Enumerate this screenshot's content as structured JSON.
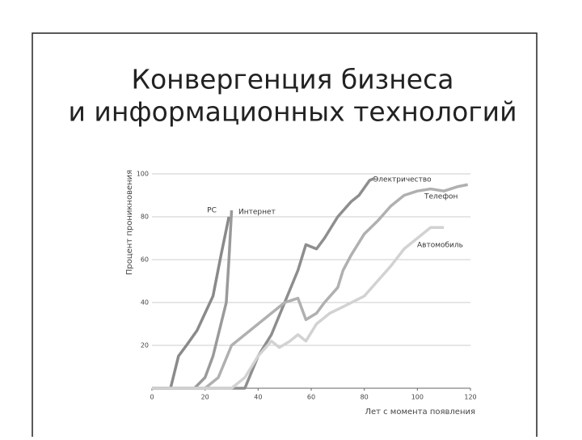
{
  "chart_data": {
    "type": "line",
    "title": [
      "Конвергенция бизнеса",
      "и информационных технологий"
    ],
    "y_label": "Процент проникновения",
    "x_label": "Лет с момента появления",
    "xlim": [
      0,
      120
    ],
    "ylim": [
      0,
      100
    ],
    "xticks": [
      0,
      20,
      40,
      60,
      80,
      100,
      120
    ],
    "yticks": [
      20,
      40,
      60,
      80,
      100
    ],
    "grid": true,
    "series": [
      {
        "name": "PC",
        "color": "#8a8a8a",
        "x": [
          0,
          7,
          8,
          10,
          13,
          17,
          20,
          23,
          26,
          29
        ],
        "values": [
          0,
          0,
          5,
          15,
          20,
          27,
          35,
          43,
          62,
          80
        ]
      },
      {
        "name": "Интернет",
        "color": "#9a9a9a",
        "x": [
          0,
          16,
          20,
          23,
          26,
          28,
          29,
          30
        ],
        "values": [
          0,
          0,
          5,
          15,
          30,
          40,
          60,
          83
        ]
      },
      {
        "name": "Электричество",
        "color": "#8e8e8e",
        "x": [
          0,
          35,
          40,
          45,
          50,
          55,
          58,
          62,
          65,
          70,
          75,
          78,
          82,
          84
        ],
        "values": [
          0,
          0,
          15,
          25,
          40,
          55,
          67,
          65,
          70,
          80,
          87,
          90,
          97,
          98
        ]
      },
      {
        "name": "Телефон",
        "color": "#b0b0b0",
        "x": [
          0,
          20,
          25,
          30,
          35,
          40,
          45,
          50,
          55,
          58,
          62,
          65,
          70,
          72,
          75,
          80,
          85,
          90,
          95,
          100,
          105,
          110,
          115,
          119
        ],
        "values": [
          0,
          0,
          5,
          20,
          25,
          30,
          35,
          40,
          42,
          32,
          35,
          40,
          47,
          55,
          62,
          72,
          78,
          85,
          90,
          92,
          93,
          92,
          94,
          95
        ]
      },
      {
        "name": "Автомобиль",
        "color": "#d2d2d2",
        "x": [
          0,
          30,
          35,
          40,
          45,
          48,
          52,
          55,
          58,
          62,
          67,
          72,
          80,
          85,
          90,
          95,
          100,
          105,
          110
        ],
        "values": [
          0,
          0,
          5,
          15,
          22,
          19,
          22,
          25,
          22,
          30,
          35,
          38,
          43,
          50,
          57,
          65,
          70,
          75,
          75
        ]
      }
    ]
  }
}
